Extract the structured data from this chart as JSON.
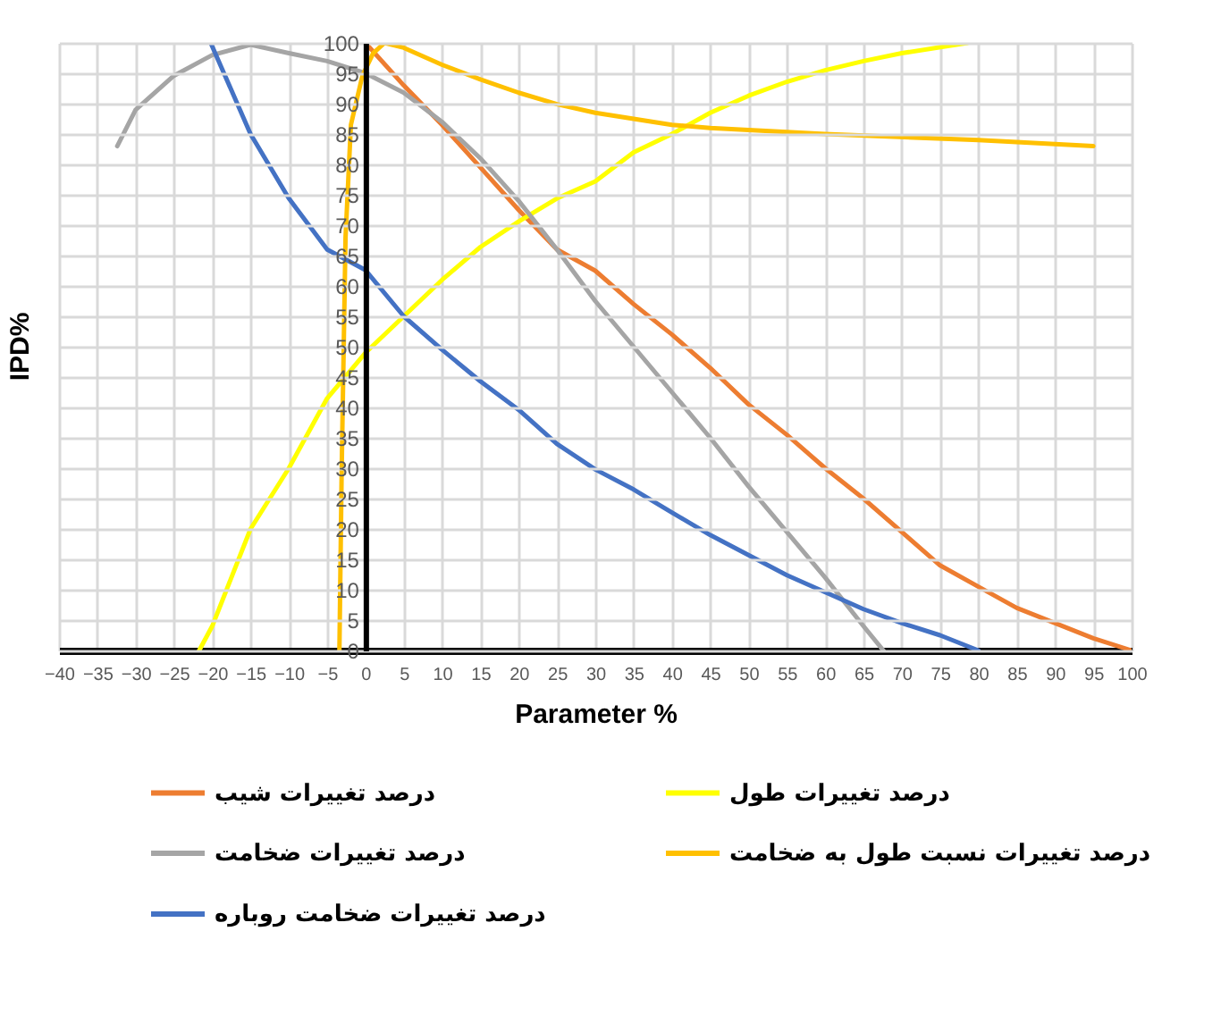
{
  "chart_data": {
    "type": "line",
    "xlabel": "Parameter %",
    "ylabel": "IPD%",
    "xlim": [
      -40,
      100
    ],
    "ylim": [
      0,
      100
    ],
    "xticks": [
      -40,
      -35,
      -30,
      -25,
      -20,
      -15,
      -10,
      -5,
      0,
      5,
      10,
      15,
      20,
      25,
      30,
      35,
      40,
      45,
      50,
      55,
      60,
      65,
      70,
      75,
      80,
      85,
      90,
      95,
      100
    ],
    "yticks": [
      0,
      5,
      10,
      15,
      20,
      25,
      30,
      35,
      40,
      45,
      50,
      55,
      60,
      65,
      70,
      75,
      80,
      85,
      90,
      95,
      100
    ],
    "grid": true,
    "legend": "bottom",
    "marker": "none",
    "line_style": "solid",
    "series": [
      {
        "name": "درصد تغییرات شیب",
        "color": "#ed7d31",
        "x": [
          0,
          5,
          10,
          15,
          20,
          25,
          30,
          35,
          40,
          45,
          50,
          55,
          60,
          65,
          70,
          75,
          80,
          85,
          90,
          95,
          100
        ],
        "values": [
          100,
          93,
          86.5,
          79.5,
          72.5,
          66,
          62.5,
          57,
          52,
          46.5,
          40.5,
          35.5,
          30,
          25,
          19.5,
          14,
          10.5,
          7,
          4.5,
          2,
          0
        ]
      },
      {
        "name": "درصد تغییرات طول",
        "color": "#ffff00",
        "x": [
          -21.7,
          -20,
          -15,
          -10,
          -5,
          0,
          5,
          10,
          15,
          20,
          25,
          30,
          35,
          40,
          45,
          50,
          55,
          60,
          65,
          70,
          78.6
        ],
        "values": [
          0,
          4,
          20,
          30,
          41.5,
          49,
          55,
          61,
          66.4,
          70.6,
          74.4,
          77.2,
          82,
          85,
          88.5,
          91.3,
          93.6,
          95.5,
          97,
          98.3,
          100
        ]
      },
      {
        "name": "درصد تغییرات ضخامت",
        "color": "#a5a5a5",
        "x": [
          -32.4,
          -30,
          -25,
          -20,
          -15,
          -10,
          -5,
          0,
          5,
          10,
          15,
          20,
          25,
          30,
          35,
          40,
          45,
          50,
          55,
          60,
          65,
          67.6
        ],
        "values": [
          83,
          89,
          94.6,
          98,
          99.7,
          98.3,
          97,
          95,
          91.8,
          87,
          81,
          74,
          66,
          57.5,
          50,
          42.5,
          35,
          27,
          19.5,
          12,
          4,
          0
        ]
      },
      {
        "name": "درصد تغییرات نسبت طول به ضخامت",
        "color": "#ffc000",
        "x": [
          -3.4,
          -3.1,
          -2.6,
          -1.9,
          -0.4,
          1,
          2.5,
          5,
          10,
          15,
          20,
          25,
          30,
          40,
          45,
          60,
          80,
          95
        ],
        "values": [
          0,
          30,
          68,
          86.5,
          94.6,
          98.3,
          100,
          99.2,
          96.4,
          94,
          91.8,
          89.9,
          88.5,
          86.5,
          86,
          85,
          84,
          83
        ]
      },
      {
        "name": "درصد تغییرات ضخامت روباره",
        "color": "#4472c4",
        "x": [
          -20.2,
          -15,
          -10,
          -5,
          0,
          5,
          10,
          15,
          20,
          25,
          30,
          35,
          40,
          45,
          50,
          55,
          60,
          65,
          70,
          75,
          80
        ],
        "values": [
          100,
          85,
          74.4,
          66,
          62.6,
          55,
          49.5,
          44.3,
          39.6,
          34,
          29.8,
          26.5,
          22.7,
          19,
          15.7,
          12.4,
          9.6,
          6.8,
          4.5,
          2.5,
          0
        ]
      }
    ]
  }
}
